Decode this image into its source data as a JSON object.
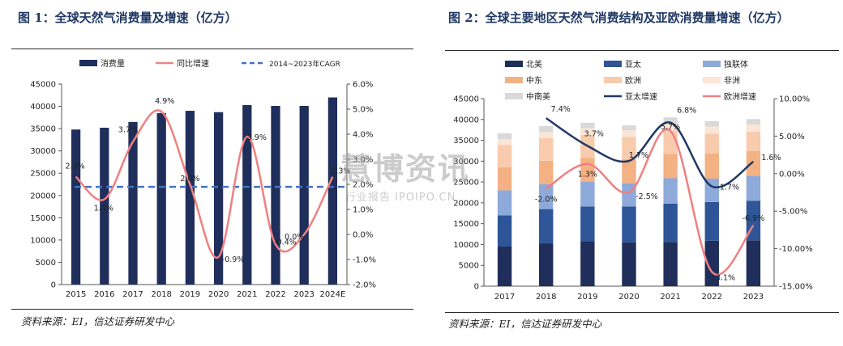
{
  "chart_data": [
    {
      "type": "bar",
      "title": "图 1：全球天然气消费量及增速（亿方）",
      "legend": [
        "消费量",
        "同比增速",
        "2014~2023年CAGR"
      ],
      "legend_placement": "top",
      "categories": [
        "2015",
        "2016",
        "2017",
        "2018",
        "2019",
        "2020",
        "2021",
        "2022",
        "2023",
        "2024E"
      ],
      "series": [
        {
          "name": "消费量",
          "axis": "left",
          "color": "#1f2e5a",
          "values": [
            34800,
            35200,
            36500,
            38500,
            39000,
            38700,
            40300,
            40100,
            40100,
            42000
          ]
        },
        {
          "name": "同比增速",
          "axis": "right",
          "color": "#f08080",
          "values": [
            2.3,
            1.4,
            3.7,
            4.9,
            2.0,
            -0.9,
            3.9,
            -0.4,
            0.0,
            2.3
          ],
          "labels": [
            "2.3%",
            "1.4%",
            "3.7%",
            "4.9%",
            "2.0%",
            "-0.9%",
            "3.9%",
            "-0.4%",
            "0.0%",
            "2.3%"
          ]
        },
        {
          "name": "2014~2023年CAGR",
          "axis": "right",
          "color": "#4472c4",
          "value": 1.9
        }
      ],
      "ylim": [
        0,
        45000
      ],
      "yticks": [
        "0",
        "5000",
        "10000",
        "15000",
        "20000",
        "25000",
        "30000",
        "35000",
        "40000",
        "45000"
      ],
      "y2lim": [
        -2.0,
        6.0
      ],
      "y2ticks": [
        "-2.0%",
        "-1.0%",
        "0.0%",
        "1.0%",
        "2.0%",
        "3.0%",
        "4.0%",
        "5.0%",
        "6.0%"
      ],
      "grid": false,
      "source": "资料来源：EI，信达证券研发中心"
    },
    {
      "type": "bar",
      "stacked": true,
      "title": "图 2：全球主要地区天然气消费结构及亚欧消费量增速（亿方）",
      "legend": [
        "北美",
        "亚太",
        "独联体",
        "中东",
        "欧洲",
        "非洲",
        "中南美",
        "亚太增速",
        "欧洲增速"
      ],
      "legend_placement": "top",
      "categories": [
        "2017",
        "2018",
        "2019",
        "2020",
        "2021",
        "2022",
        "2023"
      ],
      "series": [
        {
          "name": "北美",
          "color": "#1f2e5a",
          "values": [
            9500,
            10300,
            10800,
            10500,
            10600,
            10900,
            11000
          ]
        },
        {
          "name": "亚太",
          "color": "#2e5597",
          "values": [
            7500,
            8200,
            8300,
            8600,
            9200,
            9300,
            9500
          ]
        },
        {
          "name": "独联体",
          "color": "#8eaadb",
          "values": [
            6000,
            6000,
            6000,
            5600,
            6100,
            5600,
            6000
          ]
        },
        {
          "name": "中东",
          "color": "#f4b183",
          "values": [
            5500,
            5600,
            5700,
            5800,
            5800,
            6000,
            5900
          ]
        },
        {
          "name": "欧洲",
          "color": "#f8cbad",
          "values": [
            5400,
            5400,
            5500,
            5300,
            5700,
            4800,
            4700
          ]
        },
        {
          "name": "非洲",
          "color": "#fbe5d6",
          "values": [
            1400,
            1500,
            1600,
            1600,
            1700,
            1700,
            1700
          ]
        },
        {
          "name": "中南美",
          "color": "#d9d9d9",
          "values": [
            1400,
            1400,
            1300,
            1200,
            1400,
            1300,
            1300
          ]
        },
        {
          "name": "亚太增速",
          "axis": "right",
          "color": "#1f3864",
          "values": [
            null,
            7.4,
            3.7,
            1.7,
            6.8,
            -1.7,
            1.6
          ],
          "labels": [
            "",
            "7.4%",
            "3.7%",
            "1.7%",
            "6.8%",
            "-1.7%",
            "1.6%"
          ]
        },
        {
          "name": "欧洲增速",
          "axis": "right",
          "color": "#f08080",
          "values": [
            null,
            -2.0,
            1.3,
            -2.5,
            5.7,
            -13.1,
            -6.9
          ],
          "labels": [
            "",
            "-2.0%",
            "1.3%",
            "-2.5%",
            "5.7%",
            "-13.1%",
            "-6.9%"
          ]
        }
      ],
      "ylim": [
        0,
        45000
      ],
      "yticks": [
        "0",
        "5000",
        "10000",
        "15000",
        "20000",
        "25000",
        "30000",
        "35000",
        "40000",
        "45000"
      ],
      "y2lim": [
        -15.0,
        10.0
      ],
      "y2ticks": [
        "-15.00%",
        "-10.00%",
        "-5.00%",
        "0.00%",
        "5.00%",
        "10.00%"
      ],
      "grid": false,
      "source": "资料来源：EI，信达证券研发中心"
    }
  ],
  "watermark": {
    "main": "慧博资讯",
    "sub": "行业报告 IPOIPO.CN"
  }
}
